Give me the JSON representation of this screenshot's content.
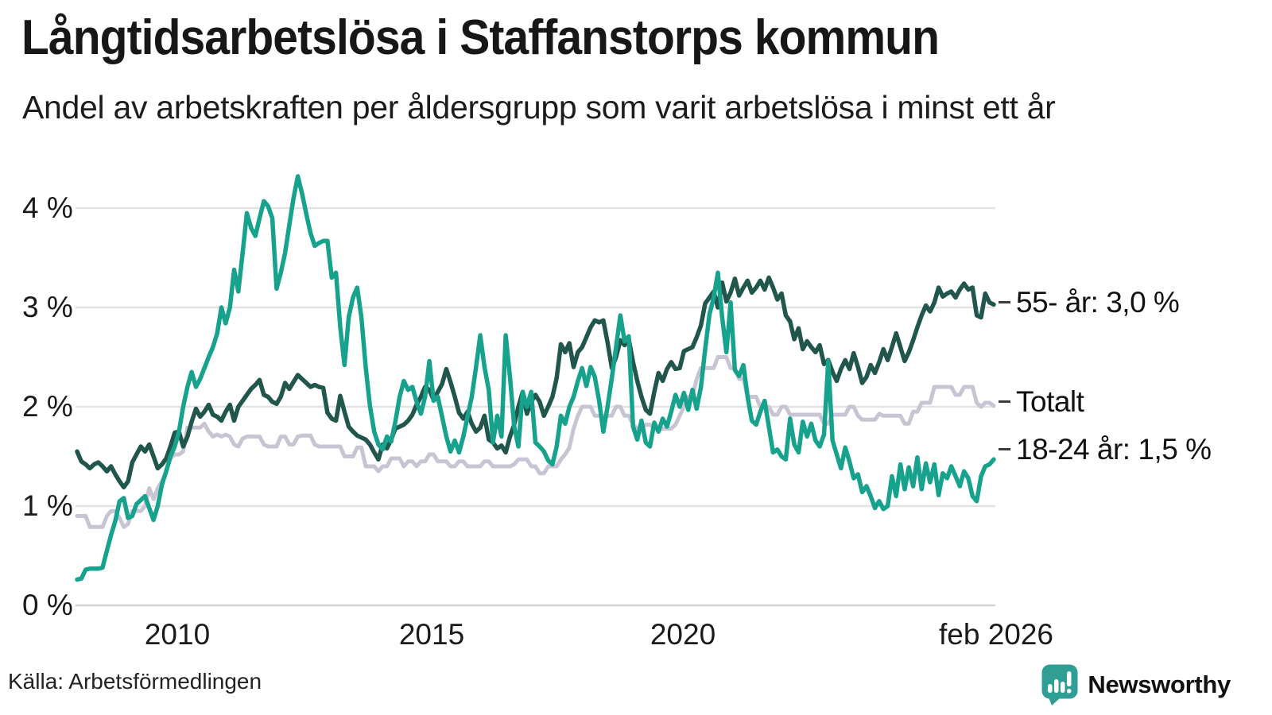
{
  "header": {
    "title": "Långtidsarbetslösa i Staffanstorps kommun",
    "subtitle": "Andel av arbetskraften per åldersgrupp som varit arbetslösa i minst ett år"
  },
  "source": {
    "label": "Källa: Arbetsförmedlingen"
  },
  "branding": {
    "name": "Newsworthy",
    "color": "#2f9e95",
    "icon": "bar-chart-speech-bubble-icon"
  },
  "chart_data": {
    "type": "line",
    "frequency": "monthly",
    "x_start": "feb 2008",
    "x_end": "feb 2026",
    "x_tick_labels": [
      "2010",
      "2015",
      "2020",
      "feb 2026"
    ],
    "y_tick_labels": [
      "0 %",
      "1 %",
      "2 %",
      "3 %",
      "4 %"
    ],
    "ylim": [
      0,
      4.4
    ],
    "grid": "horizontal",
    "legend_position": "right-end-labels",
    "annotations": [
      {
        "label": "55- år: 3,0 %",
        "at": 3.05
      },
      {
        "label": "Totalt",
        "at": 2.05
      },
      {
        "label": "18-24 år: 1,5 %",
        "at": 1.57
      }
    ],
    "series": [
      {
        "name": "Totalt",
        "color": "#c8c4d4",
        "width": 5,
        "values": [
          0.9,
          0.9,
          0.9,
          0.79,
          0.79,
          0.79,
          0.79,
          0.9,
          0.95,
          0.95,
          0.88,
          0.79,
          0.82,
          0.95,
          0.95,
          0.95,
          1.0,
          1.18,
          1.07,
          1.18,
          1.25,
          1.35,
          1.48,
          1.52,
          1.52,
          1.55,
          1.79,
          1.79,
          1.79,
          1.79,
          1.83,
          1.75,
          1.7,
          1.72,
          1.7,
          1.72,
          1.7,
          1.62,
          1.6,
          1.68,
          1.7,
          1.7,
          1.7,
          1.7,
          1.62,
          1.6,
          1.6,
          1.6,
          1.7,
          1.7,
          1.62,
          1.62,
          1.7,
          1.71,
          1.71,
          1.71,
          1.62,
          1.6,
          1.6,
          1.6,
          1.6,
          1.6,
          1.6,
          1.5,
          1.5,
          1.5,
          1.59,
          1.59,
          1.4,
          1.4,
          1.4,
          1.35,
          1.4,
          1.4,
          1.48,
          1.48,
          1.48,
          1.4,
          1.45,
          1.45,
          1.4,
          1.45,
          1.45,
          1.52,
          1.52,
          1.45,
          1.45,
          1.45,
          1.4,
          1.4,
          1.45,
          1.45,
          1.4,
          1.4,
          1.4,
          1.4,
          1.45,
          1.45,
          1.4,
          1.4,
          1.4,
          1.4,
          1.4,
          1.42,
          1.47,
          1.47,
          1.47,
          1.4,
          1.4,
          1.33,
          1.33,
          1.4,
          1.4,
          1.4,
          1.47,
          1.52,
          1.59,
          1.78,
          1.91,
          2.0,
          2.0,
          2.0,
          1.91,
          1.91,
          1.91,
          1.91,
          1.91,
          2.0,
          2.0,
          1.91,
          1.91,
          1.82,
          1.78,
          1.78,
          1.82,
          1.82,
          1.78,
          1.78,
          1.78,
          1.78,
          1.78,
          1.82,
          1.91,
          2.0,
          2.1,
          2.1,
          2.28,
          2.39,
          2.39,
          2.39,
          2.39,
          2.5,
          2.5,
          2.5,
          2.39,
          2.39,
          2.28,
          2.28,
          2.1,
          2.1,
          2.1,
          2.0,
          2.0,
          2.0,
          1.92,
          1.92,
          2.0,
          2.0,
          1.92,
          1.92,
          1.92,
          1.92,
          1.92,
          1.92,
          1.92,
          1.92,
          1.83,
          1.83,
          1.92,
          1.92,
          1.92,
          1.92,
          2.0,
          2.0,
          1.91,
          1.87,
          1.87,
          1.87,
          1.87,
          1.93,
          1.91,
          1.91,
          1.91,
          1.91,
          1.91,
          1.83,
          1.83,
          1.95,
          1.95,
          2.04,
          2.04,
          2.04,
          2.2,
          2.2,
          2.2,
          2.2,
          2.2,
          2.12,
          2.12,
          2.2,
          2.2,
          2.2,
          2.04,
          2.0,
          2.04,
          2.04,
          2.01
        ]
      },
      {
        "name": "55- år",
        "color": "#21564c",
        "width": 5.5,
        "values": [
          1.55,
          1.45,
          1.42,
          1.38,
          1.42,
          1.44,
          1.4,
          1.35,
          1.4,
          1.32,
          1.25,
          1.19,
          1.25,
          1.44,
          1.52,
          1.6,
          1.55,
          1.62,
          1.5,
          1.38,
          1.42,
          1.48,
          1.6,
          1.74,
          1.75,
          1.6,
          1.7,
          1.85,
          1.98,
          1.9,
          1.95,
          2.02,
          1.92,
          1.9,
          1.86,
          1.95,
          2.02,
          1.86,
          2.0,
          2.06,
          2.12,
          2.18,
          2.22,
          2.27,
          2.12,
          2.1,
          2.05,
          2.03,
          2.1,
          2.24,
          2.18,
          2.25,
          2.32,
          2.28,
          2.24,
          2.2,
          2.22,
          2.2,
          2.19,
          1.94,
          1.88,
          1.86,
          2.11,
          1.95,
          1.8,
          1.75,
          1.71,
          1.69,
          1.67,
          1.62,
          1.54,
          1.47,
          1.62,
          1.58,
          1.67,
          1.78,
          1.8,
          1.82,
          1.86,
          1.92,
          2.02,
          2.1,
          2.2,
          2.17,
          2.07,
          2.15,
          2.23,
          2.38,
          2.25,
          2.1,
          1.94,
          1.88,
          1.95,
          1.83,
          1.75,
          1.79,
          1.91,
          1.67,
          1.64,
          1.58,
          1.61,
          1.54,
          1.7,
          1.82,
          2.0,
          2.15,
          1.93,
          2.05,
          2.12,
          2.05,
          1.91,
          2.0,
          2.1,
          2.29,
          2.63,
          2.55,
          2.64,
          2.4,
          2.55,
          2.6,
          2.7,
          2.8,
          2.87,
          2.85,
          2.87,
          2.65,
          2.39,
          2.5,
          2.67,
          2.62,
          2.68,
          2.45,
          2.26,
          2.1,
          1.97,
          1.93,
          2.15,
          2.34,
          2.26,
          2.38,
          2.45,
          2.38,
          2.39,
          2.56,
          2.58,
          2.6,
          2.7,
          2.82,
          3.04,
          3.1,
          3.16,
          3.0,
          3.25,
          3.06,
          3.15,
          3.29,
          3.12,
          3.2,
          3.27,
          3.15,
          3.2,
          3.27,
          3.18,
          3.3,
          3.2,
          3.08,
          3.14,
          2.92,
          2.86,
          2.68,
          2.79,
          2.58,
          2.66,
          2.6,
          2.55,
          2.62,
          2.43,
          2.47,
          2.35,
          2.26,
          2.38,
          2.47,
          2.38,
          2.54,
          2.4,
          2.24,
          2.3,
          2.42,
          2.34,
          2.45,
          2.58,
          2.47,
          2.6,
          2.74,
          2.6,
          2.46,
          2.55,
          2.67,
          2.8,
          2.92,
          3.02,
          2.96,
          3.05,
          3.2,
          3.11,
          3.14,
          3.16,
          3.1,
          3.18,
          3.24,
          3.18,
          3.2,
          2.92,
          2.9,
          3.14,
          3.05,
          3.03
        ]
      },
      {
        "name": "18-24 år",
        "color": "#17a28e",
        "width": 5.5,
        "values": [
          0.26,
          0.27,
          0.36,
          0.37,
          0.37,
          0.37,
          0.38,
          0.55,
          0.71,
          0.85,
          1.05,
          1.08,
          0.88,
          0.9,
          1.02,
          1.06,
          1.1,
          0.98,
          0.86,
          1.0,
          1.22,
          1.35,
          1.5,
          1.6,
          1.75,
          2.0,
          2.2,
          2.35,
          2.2,
          2.28,
          2.39,
          2.5,
          2.6,
          2.74,
          3.0,
          2.84,
          3.0,
          3.38,
          3.16,
          3.55,
          3.95,
          3.8,
          3.72,
          3.9,
          4.07,
          4.02,
          3.9,
          3.19,
          3.35,
          3.55,
          3.83,
          4.1,
          4.32,
          4.15,
          3.94,
          3.75,
          3.62,
          3.65,
          3.67,
          3.67,
          3.3,
          3.35,
          2.8,
          2.42,
          2.9,
          3.1,
          3.2,
          2.9,
          2.4,
          2.01,
          1.75,
          1.62,
          1.57,
          1.7,
          1.65,
          1.85,
          2.1,
          2.26,
          2.17,
          2.2,
          2.05,
          1.93,
          2.1,
          2.46,
          2.06,
          2.1,
          1.9,
          1.7,
          1.55,
          1.66,
          1.54,
          1.7,
          1.9,
          2.1,
          2.4,
          2.72,
          2.4,
          2.17,
          1.64,
          1.91,
          1.7,
          2.72,
          2.3,
          1.8,
          1.6,
          2.15,
          2.0,
          2.15,
          1.64,
          1.6,
          1.55,
          1.46,
          1.42,
          1.6,
          1.91,
          1.83,
          2.0,
          2.1,
          2.26,
          2.39,
          2.21,
          2.4,
          2.3,
          2.06,
          1.75,
          2.0,
          2.29,
          2.6,
          2.92,
          2.66,
          2.71,
          1.8,
          1.67,
          1.86,
          1.64,
          1.6,
          1.84,
          1.75,
          1.88,
          1.8,
          1.95,
          2.12,
          2.0,
          2.14,
          1.97,
          2.17,
          1.98,
          2.2,
          2.58,
          2.93,
          3.1,
          3.35,
          2.9,
          2.55,
          3.05,
          2.37,
          2.31,
          2.42,
          2.1,
          1.86,
          1.82,
          1.95,
          2.06,
          1.8,
          1.54,
          1.57,
          1.5,
          1.47,
          1.88,
          1.62,
          1.54,
          1.85,
          1.7,
          1.83,
          1.66,
          1.6,
          1.72,
          2.46,
          1.66,
          1.52,
          1.38,
          1.59,
          1.45,
          1.28,
          1.32,
          1.14,
          1.2,
          1.1,
          0.98,
          1.05,
          0.97,
          1.0,
          1.3,
          1.1,
          1.42,
          1.17,
          1.39,
          1.2,
          1.49,
          1.17,
          1.43,
          1.24,
          1.42,
          1.11,
          1.33,
          1.28,
          1.4,
          1.3,
          1.2,
          1.35,
          1.28,
          1.1,
          1.05,
          1.3,
          1.4,
          1.42,
          1.47
        ]
      }
    ]
  }
}
